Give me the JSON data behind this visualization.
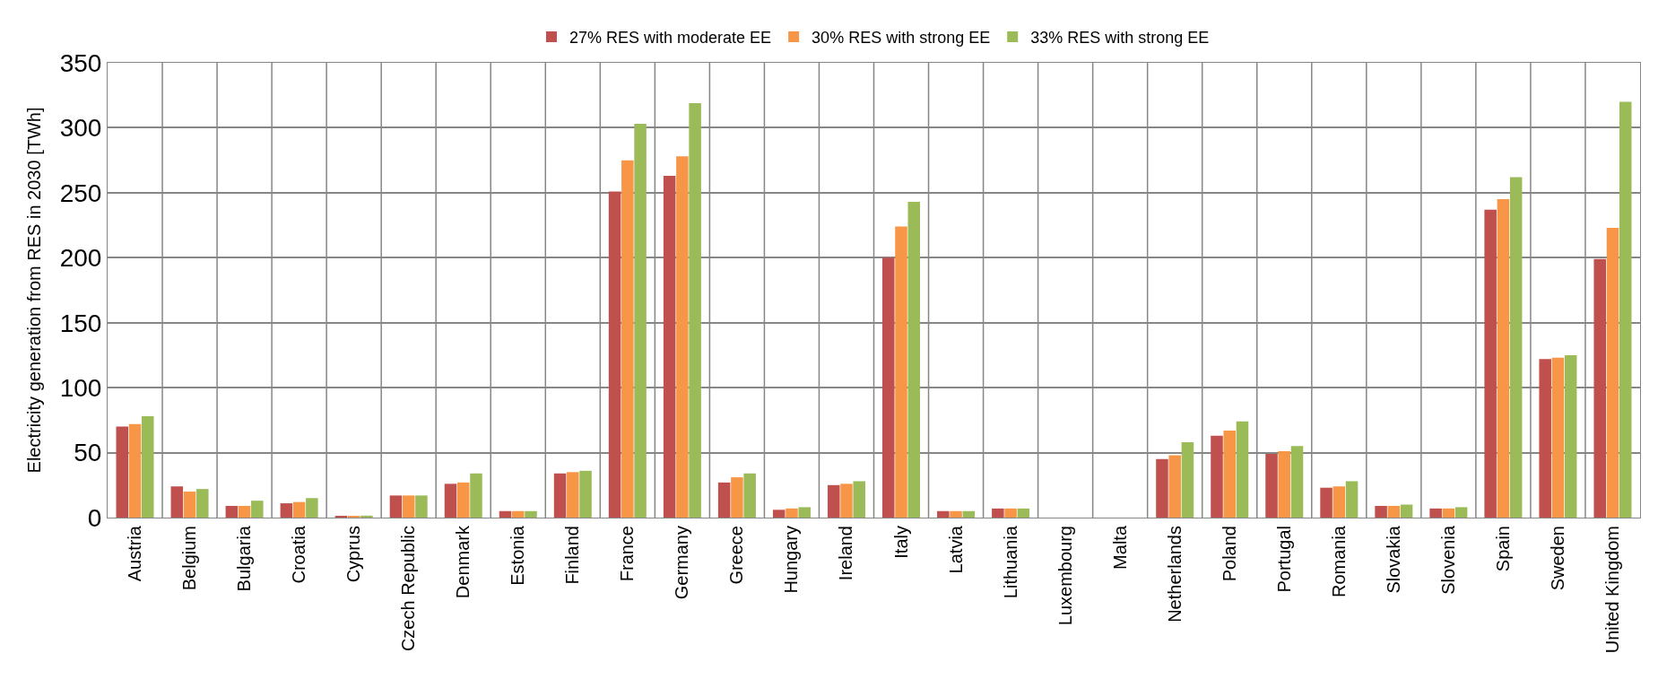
{
  "chart_data": {
    "type": "bar",
    "ylabel": "Electricity generation from RES in 2030 [TWh]",
    "categories": [
      "Austria",
      "Belgium",
      "Bulgaria",
      "Croatia",
      "Cyprus",
      "Czech Republic",
      "Denmark",
      "Estonia",
      "Finland",
      "France",
      "Germany",
      "Greece",
      "Hungary",
      "Ireland",
      "Italy",
      "Latvia",
      "Lithuania",
      "Luxembourg",
      "Malta",
      "Netherlands",
      "Poland",
      "Portugal",
      "Romania",
      "Slovakia",
      "Slovenia",
      "Spain",
      "Sweden",
      "United Kingdom"
    ],
    "series": [
      {
        "name": "27% RES with moderate EE",
        "color": "#c0504d",
        "values": [
          70,
          24,
          9,
          11,
          1,
          17,
          26,
          5,
          34,
          251,
          263,
          27,
          6,
          25,
          200,
          5,
          7,
          0,
          0,
          45,
          63,
          49,
          23,
          9,
          7,
          237,
          122,
          199
        ]
      },
      {
        "name": "30% RES with strong EE",
        "color": "#f79646",
        "values": [
          72,
          20,
          9,
          12,
          1,
          17,
          27,
          5,
          35,
          275,
          278,
          31,
          7,
          26,
          224,
          5,
          7,
          0,
          0,
          48,
          67,
          51,
          24,
          9,
          7,
          245,
          123,
          223
        ]
      },
      {
        "name": "33% RES with strong EE",
        "color": "#9bbb59",
        "values": [
          78,
          22,
          13,
          15,
          1.5,
          17,
          34,
          5,
          36,
          303,
          319,
          34,
          8,
          28,
          243,
          5,
          7,
          0,
          0,
          58,
          74,
          55,
          28,
          10,
          8,
          262,
          125,
          320
        ]
      }
    ],
    "ylim": [
      0,
      350
    ],
    "yticks": [
      0,
      50,
      100,
      150,
      200,
      250,
      300,
      350
    ],
    "grid": true,
    "legend": "top"
  }
}
